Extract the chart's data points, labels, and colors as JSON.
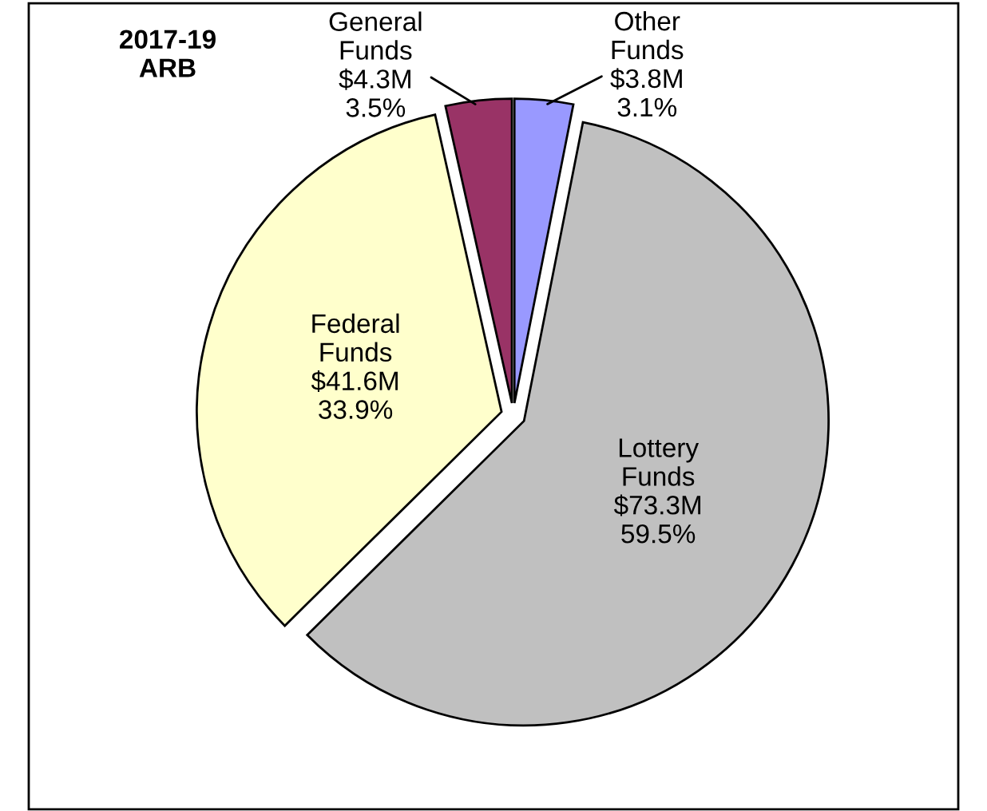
{
  "chart_data": {
    "type": "pie",
    "title": "2017-19\nARB",
    "categories": [
      "Other Funds",
      "Lottery Funds",
      "Federal Funds",
      "General Funds"
    ],
    "values": [
      3.1,
      59.5,
      33.9,
      3.5
    ],
    "value_labels": [
      "$3.8M\n3.1%",
      "$73.3M\n59.5%",
      "$41.6M\n33.9%",
      "$4.3M\n3.5%"
    ],
    "colors": [
      "#9999ff",
      "#c0c0c0",
      "#ffffcc",
      "#993366"
    ],
    "legend": false
  }
}
